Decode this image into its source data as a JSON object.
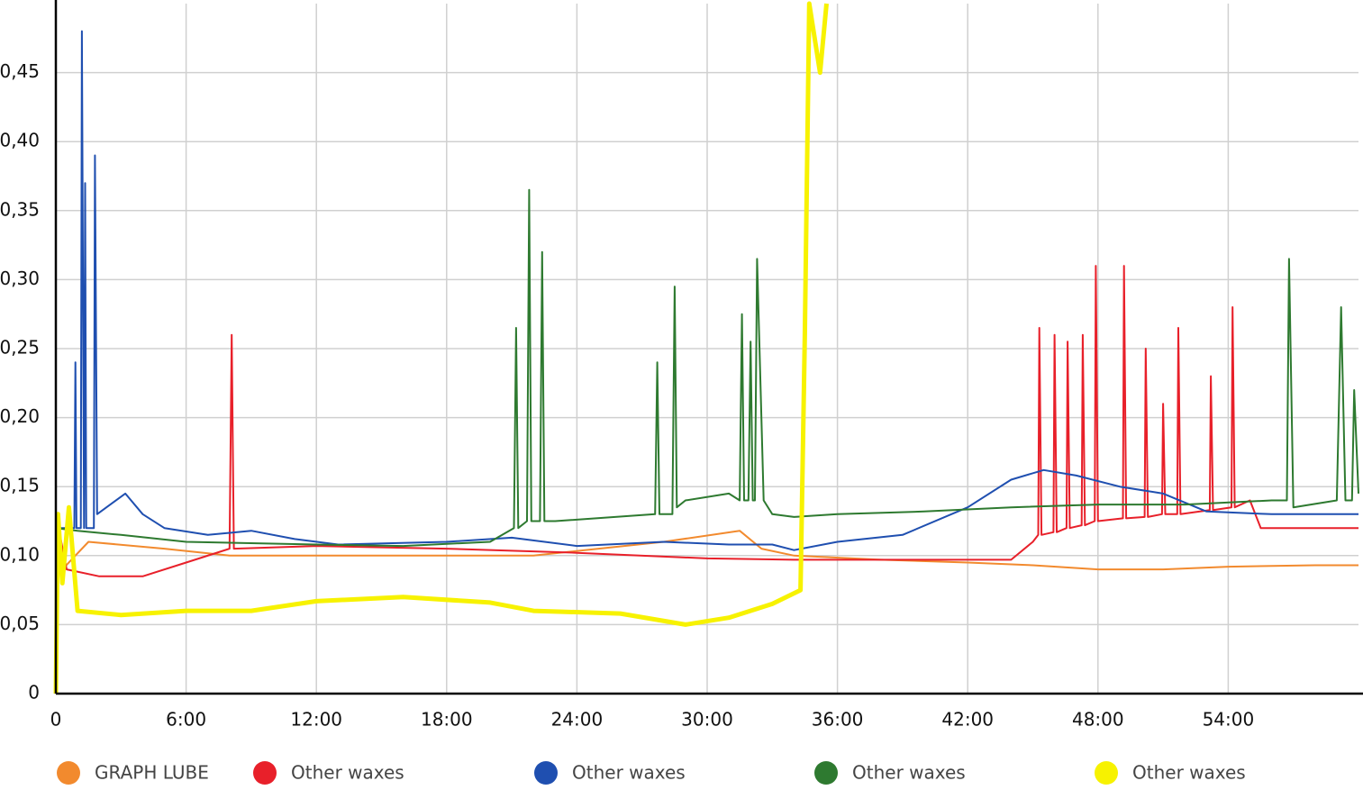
{
  "chart_data": {
    "type": "line",
    "xlim": [
      0,
      60
    ],
    "ylim": [
      0,
      0.5
    ],
    "xticks": [
      0,
      {
        "value": 6,
        "label": "6:00"
      },
      {
        "value": 12,
        "label": "12:00"
      },
      {
        "value": 18,
        "label": "18:00"
      },
      {
        "value": 24,
        "label": "24:00"
      },
      {
        "value": 30,
        "label": "30:00"
      },
      {
        "value": 36,
        "label": "36:00"
      },
      {
        "value": 42,
        "label": "42:00"
      },
      {
        "value": 48,
        "label": "48:00"
      },
      {
        "value": 54,
        "label": "54:00"
      }
    ],
    "yticks": [
      0,
      {
        "value": 0.05,
        "label": "0,05"
      },
      {
        "value": 0.1,
        "label": "0,10"
      },
      {
        "value": 0.15,
        "label": "0,15"
      },
      {
        "value": 0.2,
        "label": "0,20"
      },
      {
        "value": 0.25,
        "label": "0,25"
      },
      {
        "value": 0.3,
        "label": "0,30"
      },
      {
        "value": 0.35,
        "label": "0,35"
      },
      {
        "value": 0.4,
        "label": "0,40"
      },
      {
        "value": 0.45,
        "label": "0,45"
      }
    ],
    "grid": true,
    "legend": "bottom",
    "series": [
      {
        "name": "GRAPH LUBE",
        "color": "#f28a2e",
        "x": [
          0,
          0.3,
          1.5,
          5,
          8,
          12,
          18,
          22,
          25,
          28,
          31.5,
          32.5,
          34,
          38,
          42,
          45,
          48,
          51,
          54,
          58,
          60
        ],
        "values": [
          0.13,
          0.09,
          0.11,
          0.105,
          0.1,
          0.1,
          0.1,
          0.1,
          0.105,
          0.11,
          0.118,
          0.105,
          0.1,
          0.097,
          0.095,
          0.093,
          0.09,
          0.09,
          0.092,
          0.093,
          0.093
        ]
      },
      {
        "name": "Other waxes",
        "color": "#e8202a",
        "x": [
          0,
          0.5,
          2,
          4,
          6,
          8,
          8.1,
          8.2,
          12,
          18,
          24,
          30,
          34,
          40,
          44,
          45,
          45.25,
          45.3,
          45.4,
          45.95,
          46,
          46.1,
          46.55,
          46.6,
          46.7,
          47.25,
          47.3,
          47.4,
          47.85,
          47.9,
          48,
          49.15,
          49.2,
          49.3,
          50.15,
          50.2,
          50.3,
          50.95,
          51,
          51.1,
          51.65,
          51.7,
          51.8,
          53.15,
          53.2,
          53.3,
          54.15,
          54.2,
          54.3,
          55,
          55.5,
          60
        ],
        "values": [
          0.13,
          0.09,
          0.085,
          0.085,
          0.095,
          0.105,
          0.26,
          0.105,
          0.107,
          0.105,
          0.102,
          0.098,
          0.097,
          0.097,
          0.097,
          0.11,
          0.115,
          0.265,
          0.115,
          0.117,
          0.26,
          0.117,
          0.12,
          0.255,
          0.12,
          0.122,
          0.26,
          0.122,
          0.125,
          0.31,
          0.125,
          0.127,
          0.31,
          0.127,
          0.128,
          0.25,
          0.128,
          0.13,
          0.21,
          0.13,
          0.13,
          0.265,
          0.13,
          0.133,
          0.23,
          0.133,
          0.135,
          0.28,
          0.135,
          0.14,
          0.12,
          0.12
        ]
      },
      {
        "name": "Other waxes",
        "color": "#1f4fb0",
        "x": [
          0,
          0.85,
          0.9,
          0.95,
          1.15,
          1.2,
          1.3,
          1.35,
          1.4,
          1.75,
          1.8,
          1.9,
          3.2,
          4,
          5,
          7,
          9,
          11,
          13,
          18,
          21,
          24,
          28,
          31,
          33,
          34,
          36,
          39,
          42,
          44,
          45.5,
          47,
          49,
          51,
          53,
          56,
          60
        ],
        "values": [
          0.12,
          0.12,
          0.24,
          0.12,
          0.12,
          0.48,
          0.12,
          0.37,
          0.12,
          0.12,
          0.39,
          0.13,
          0.145,
          0.13,
          0.12,
          0.115,
          0.118,
          0.112,
          0.108,
          0.11,
          0.113,
          0.107,
          0.11,
          0.108,
          0.108,
          0.104,
          0.11,
          0.115,
          0.135,
          0.155,
          0.162,
          0.158,
          0.15,
          0.145,
          0.132,
          0.13,
          0.13
        ]
      },
      {
        "name": "Other waxes",
        "color": "#2e7a30",
        "x": [
          0,
          1,
          3,
          6,
          12,
          16,
          20,
          21.1,
          21.2,
          21.3,
          21.7,
          21.8,
          21.9,
          22.3,
          22.4,
          22.5,
          23,
          27.6,
          27.7,
          27.8,
          28.4,
          28.5,
          28.6,
          29,
          31,
          31.5,
          31.6,
          31.7,
          31.9,
          32,
          32.1,
          32.2,
          32.3,
          32.6,
          33,
          34,
          36,
          40,
          44,
          48,
          52,
          56,
          56.7,
          56.8,
          57,
          59,
          59.2,
          59.4,
          59.7,
          59.8,
          60
        ],
        "values": [
          0.12,
          0.118,
          0.115,
          0.11,
          0.108,
          0.107,
          0.11,
          0.12,
          0.265,
          0.12,
          0.125,
          0.365,
          0.125,
          0.125,
          0.32,
          0.125,
          0.125,
          0.13,
          0.24,
          0.13,
          0.13,
          0.295,
          0.135,
          0.14,
          0.145,
          0.14,
          0.275,
          0.14,
          0.14,
          0.255,
          0.14,
          0.14,
          0.315,
          0.14,
          0.13,
          0.128,
          0.13,
          0.132,
          0.135,
          0.137,
          0.137,
          0.14,
          0.14,
          0.315,
          0.135,
          0.14,
          0.28,
          0.14,
          0.14,
          0.22,
          0.145
        ]
      },
      {
        "name": "Other waxes",
        "color": "#f7f200",
        "x": [
          0,
          0.1,
          0.3,
          0.6,
          1,
          3,
          6,
          9,
          12,
          16,
          20,
          22,
          26,
          29,
          31,
          33,
          34.3,
          34.5,
          34.7,
          35.2,
          35.5
        ],
        "values": [
          0,
          0.13,
          0.08,
          0.135,
          0.06,
          0.057,
          0.06,
          0.06,
          0.067,
          0.07,
          0.066,
          0.06,
          0.058,
          0.05,
          0.055,
          0.065,
          0.075,
          0.26,
          0.5,
          0.45,
          0.5
        ]
      }
    ]
  }
}
